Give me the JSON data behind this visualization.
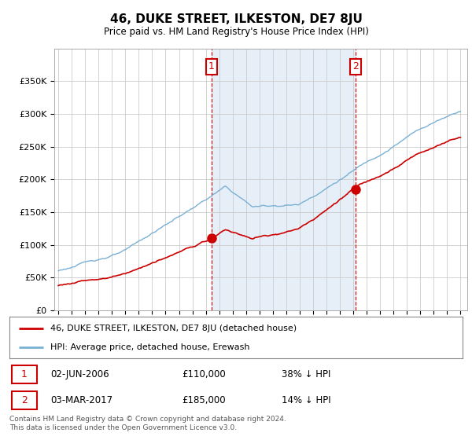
{
  "title": "46, DUKE STREET, ILKESTON, DE7 8JU",
  "subtitle": "Price paid vs. HM Land Registry's House Price Index (HPI)",
  "background_color": "#dce8f5",
  "fig_bg_color": "#ffffff",
  "ylim": [
    0,
    400000
  ],
  "yticks": [
    0,
    50000,
    100000,
    150000,
    200000,
    250000,
    300000,
    350000
  ],
  "ytick_labels": [
    "£0",
    "£50K",
    "£100K",
    "£150K",
    "£200K",
    "£250K",
    "£300K",
    "£350K"
  ],
  "hpi_color": "#7ab0d4",
  "price_color": "#cc0000",
  "vline_color": "#cc0000",
  "shade_color": "#dce8f5",
  "transaction1_x": 2006.42,
  "transaction1_y": 110000,
  "transaction1_label": "1",
  "transaction2_x": 2017.17,
  "transaction2_y": 185000,
  "transaction2_label": "2",
  "legend_price_label": "46, DUKE STREET, ILKESTON, DE7 8JU (detached house)",
  "legend_hpi_label": "HPI: Average price, detached house, Erewash",
  "note1_label": "1",
  "note1_date": "02-JUN-2006",
  "note1_price": "£110,000",
  "note1_hpi": "38% ↓ HPI",
  "note2_label": "2",
  "note2_date": "03-MAR-2017",
  "note2_price": "£185,000",
  "note2_hpi": "14% ↓ HPI",
  "footer": "Contains HM Land Registry data © Crown copyright and database right 2024.\nThis data is licensed under the Open Government Licence v3.0.",
  "xlim_left": 1994.7,
  "xlim_right": 2025.5
}
